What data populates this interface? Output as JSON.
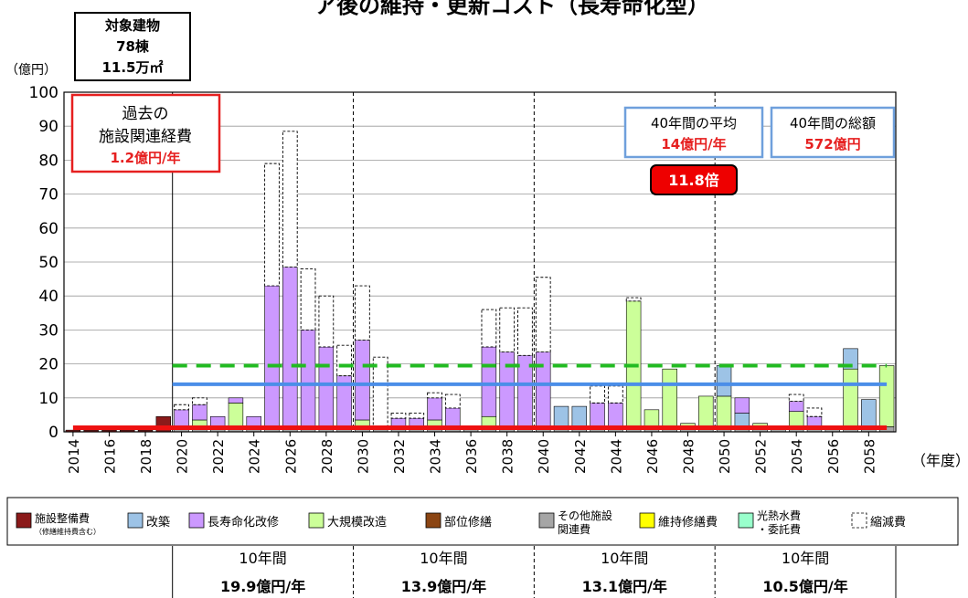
{
  "title": "ア後の維持・更新コスト（長寿命化型）",
  "target_box": {
    "line1": "対象建物",
    "line2": "78棟",
    "line3": "11.5万㎡"
  },
  "colors": {
    "facility": "#8b1a1a",
    "reconstruction": "#9dc3e6",
    "longevity": "#cc99ff",
    "major": "#ccff99",
    "partial": "#8b4513",
    "other": "#a6a6a6",
    "maintenance": "#ffff00",
    "utility": "#99ffcc",
    "reduction": "#ffffff",
    "average_line": "#4b8ee8",
    "target_line": "#22bb22",
    "past_line": "#ee1111"
  },
  "annotations": {
    "past": {
      "line1": "過去の",
      "line2": "施設関連経費",
      "line3": "1.2億円/年"
    },
    "avg": {
      "line1": "40年間の平均",
      "line2": "14億円/年"
    },
    "total": {
      "line1": "40年間の総額",
      "line2": "572億円"
    },
    "ratio": "11.8倍"
  },
  "decades": [
    {
      "label": "10年間",
      "value": "19.9億円/年"
    },
    {
      "label": "10年間",
      "value": "13.9億円/年"
    },
    {
      "label": "10年間",
      "value": "13.1億円/年"
    },
    {
      "label": "10年間",
      "value": "10.5億円/年"
    }
  ],
  "legend": [
    {
      "key": "facility",
      "label": "施設整備費",
      "sub": "（修繕維持費含む）"
    },
    {
      "key": "reconstruction",
      "label": "改築"
    },
    {
      "key": "longevity",
      "label": "長寿命化改修"
    },
    {
      "key": "major",
      "label": "大規模改造"
    },
    {
      "key": "partial",
      "label": "部位修繕"
    },
    {
      "key": "other",
      "label": "その他施設",
      "label2": "関連費"
    },
    {
      "key": "maintenance",
      "label": "維持修繕費"
    },
    {
      "key": "utility",
      "label": "光熱水費",
      "label2": "・委託費"
    },
    {
      "key": "reduction",
      "label": "縮減費"
    }
  ],
  "chart_data": {
    "type": "bar",
    "stacked": true,
    "ylabel": "（億円）",
    "xlabel": "（年度）",
    "ylim": [
      0,
      100
    ],
    "yticks": [
      0,
      10,
      20,
      30,
      40,
      50,
      60,
      70,
      80,
      90,
      100
    ],
    "grid": true,
    "categories": [
      2014,
      2015,
      2016,
      2017,
      2018,
      2019,
      2020,
      2021,
      2022,
      2023,
      2024,
      2025,
      2026,
      2027,
      2028,
      2029,
      2030,
      2031,
      2032,
      2033,
      2034,
      2035,
      2036,
      2037,
      2038,
      2039,
      2040,
      2041,
      2042,
      2043,
      2044,
      2045,
      2046,
      2047,
      2048,
      2049,
      2050,
      2051,
      2052,
      2053,
      2054,
      2055,
      2056,
      2057,
      2058,
      2059
    ],
    "xtick_labels": [
      "2014",
      "2016",
      "2018",
      "2020",
      "2022",
      "2024",
      "2026",
      "2028",
      "2030",
      "2032",
      "2034",
      "2036",
      "2038",
      "2040",
      "2042",
      "2044",
      "2046",
      "2048",
      "2050",
      "2052",
      "2054",
      "2056",
      "2058"
    ],
    "series": [
      {
        "name": "施設整備費",
        "key": "facility",
        "values": [
          0.5,
          0.5,
          0.5,
          0.5,
          0.5,
          4.5,
          0,
          0,
          0,
          0,
          0,
          0,
          0,
          0,
          0,
          0,
          0,
          0,
          0,
          0,
          0,
          0,
          0,
          0,
          0,
          0,
          0,
          0,
          0,
          0,
          0,
          0,
          0,
          0,
          0,
          0,
          0,
          0,
          0,
          0,
          0,
          0,
          0,
          0,
          0,
          0
        ]
      },
      {
        "name": "その他施設関連費",
        "key": "other",
        "values": [
          0,
          0,
          0,
          0,
          0,
          0,
          1.5,
          1.5,
          1.5,
          1.5,
          1.5,
          1.5,
          1.5,
          1.5,
          1.5,
          1.5,
          1.5,
          1.5,
          1.5,
          1.5,
          1.5,
          1.5,
          1.5,
          1.5,
          1.5,
          1.5,
          1.5,
          1.5,
          1.5,
          1.5,
          1.5,
          1.5,
          1.5,
          1.5,
          1.5,
          1.5,
          1.5,
          1.5,
          1.5,
          1.5,
          1.5,
          1.5,
          1.5,
          1.5,
          1.5,
          1.5
        ]
      },
      {
        "name": "大規模改造",
        "key": "major",
        "values": [
          0,
          0,
          0,
          0,
          0,
          0,
          0,
          2,
          0,
          7,
          0,
          0,
          0,
          0,
          0,
          0,
          2,
          0,
          0,
          0,
          2,
          0,
          0,
          3,
          0,
          0,
          0,
          0,
          0,
          0,
          0,
          37,
          5,
          17,
          1,
          9,
          9,
          0,
          1,
          0,
          4.5,
          0,
          0,
          17,
          0,
          18
        ]
      },
      {
        "name": "改築",
        "key": "reconstruction",
        "values": [
          0,
          0,
          0,
          0,
          0,
          0,
          0,
          0,
          0,
          0,
          0,
          0,
          0,
          0,
          0,
          0,
          0,
          0,
          0,
          0,
          0,
          0,
          0,
          0,
          0,
          0,
          0,
          6,
          6,
          0,
          0,
          0,
          0,
          0,
          0,
          0,
          9,
          4,
          0,
          0,
          0,
          0,
          0,
          6,
          8,
          0
        ]
      },
      {
        "name": "長寿命化改修",
        "key": "longevity",
        "values": [
          0,
          0,
          0,
          0,
          0,
          0,
          5,
          4.5,
          3,
          1.5,
          3,
          41.5,
          47,
          28.5,
          23.5,
          15,
          23.5,
          0,
          2.5,
          2.5,
          6.5,
          5.5,
          0,
          20.5,
          22,
          21,
          22,
          0,
          0,
          7,
          7,
          0,
          0,
          0,
          0,
          0,
          0,
          4.5,
          0,
          0,
          3,
          3,
          0,
          0,
          0,
          0
        ]
      },
      {
        "name": "縮減費",
        "key": "reduction",
        "values": [
          0,
          0,
          0,
          0,
          0,
          0,
          1.5,
          2,
          0,
          0,
          0,
          36,
          40,
          18,
          15,
          9,
          16,
          20.5,
          1.5,
          1.5,
          1.5,
          4,
          0,
          11,
          13,
          14,
          22,
          0,
          0,
          5,
          5,
          1,
          0,
          0,
          0,
          0,
          0,
          0,
          0,
          0,
          2,
          2.5,
          0,
          0,
          0,
          0
        ]
      }
    ],
    "reference_lines": [
      {
        "label": "40年間の平均 14億円/年",
        "value": 14,
        "from": 2020,
        "to": 2059,
        "key": "average_line"
      },
      {
        "label": "過去の施設関連経費 1.2億円/年",
        "value": 1.2,
        "from": 2014,
        "to": 2059,
        "key": "past_line"
      },
      {
        "label": "",
        "value": 19.5,
        "from": 2020,
        "to": 2059,
        "key": "target_line",
        "dashed": true
      }
    ],
    "decade_dividers": [
      2020,
      2030,
      2040,
      2050
    ]
  }
}
